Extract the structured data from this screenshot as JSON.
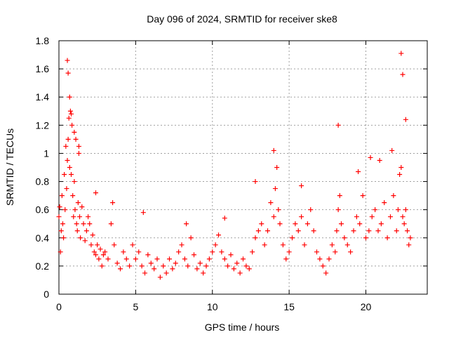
{
  "chart_data": {
    "type": "scatter",
    "title": "Day 096 of 2024, SRMTID for receiver ske8",
    "xlabel": "GPS time / hours",
    "ylabel": "SRMTID / TECUs",
    "xlim": [
      0,
      24
    ],
    "ylim": [
      0,
      1.8
    ],
    "xticks": [
      0,
      5,
      10,
      15,
      20
    ],
    "xtick_labels": [
      "0",
      "5",
      "10",
      "15",
      "20"
    ],
    "yticks": [
      0,
      0.2,
      0.4,
      0.6,
      0.8,
      1,
      1.2,
      1.4,
      1.6,
      1.8
    ],
    "ytick_labels": [
      "0",
      "0.2",
      "0.4",
      "0.6",
      "0.8",
      "1",
      "1.2",
      "1.4",
      "1.6",
      "1.8"
    ],
    "grid": true,
    "marker": "plus",
    "series": [
      {
        "name": "SRMTID",
        "color": "#ff0000",
        "x": [
          0.0,
          0.05,
          0.1,
          0.15,
          0.2,
          0.25,
          0.3,
          0.35,
          0.4,
          0.45,
          0.5,
          0.55,
          0.6,
          0.65,
          0.7,
          0.75,
          0.8,
          0.85,
          0.9,
          0.95,
          1.0,
          1.05,
          1.1,
          1.15,
          1.2,
          1.25,
          1.3,
          1.35,
          1.4,
          1.5,
          1.6,
          1.7,
          1.8,
          1.9,
          2.0,
          2.1,
          2.2,
          2.3,
          2.4,
          2.5,
          2.6,
          2.7,
          2.8,
          2.9,
          3.0,
          3.2,
          3.4,
          3.6,
          3.8,
          4.0,
          4.2,
          4.4,
          4.6,
          4.8,
          5.0,
          5.2,
          5.4,
          5.6,
          5.8,
          6.0,
          6.2,
          6.4,
          6.6,
          6.8,
          7.0,
          7.2,
          7.4,
          7.6,
          7.8,
          8.0,
          8.2,
          8.4,
          8.6,
          8.8,
          9.0,
          9.2,
          9.4,
          9.6,
          9.8,
          10.0,
          10.2,
          10.4,
          10.6,
          10.8,
          11.0,
          11.2,
          11.4,
          11.6,
          11.8,
          12.0,
          12.2,
          12.4,
          12.6,
          12.8,
          13.0,
          13.2,
          13.4,
          13.6,
          13.8,
          14.0,
          14.1,
          14.2,
          14.3,
          14.4,
          14.6,
          14.8,
          15.0,
          15.2,
          15.4,
          15.6,
          15.8,
          16.0,
          16.2,
          16.4,
          16.6,
          16.8,
          17.0,
          17.2,
          17.4,
          17.6,
          17.8,
          18.0,
          18.1,
          18.2,
          18.3,
          18.4,
          18.6,
          18.8,
          19.0,
          19.2,
          19.4,
          19.6,
          19.8,
          20.0,
          20.2,
          20.4,
          20.6,
          20.8,
          21.0,
          21.2,
          21.4,
          21.6,
          21.8,
          22.0,
          22.1,
          22.2,
          22.3,
          22.4,
          22.5,
          22.6,
          22.7,
          22.8,
          22.9,
          0.55,
          0.6,
          0.7,
          0.8,
          1.0,
          1.3,
          2.4,
          3.5,
          5.5,
          8.3,
          10.8,
          12.8,
          14.0,
          15.8,
          18.2,
          19.5,
          20.3,
          20.9,
          21.7,
          22.3,
          22.4,
          22.6
        ],
        "y": [
          0.55,
          0.62,
          0.3,
          0.45,
          0.7,
          0.5,
          0.4,
          0.85,
          0.6,
          1.05,
          0.75,
          0.95,
          1.1,
          1.25,
          0.9,
          1.3,
          0.85,
          1.2,
          0.7,
          0.55,
          0.8,
          0.6,
          1.1,
          0.5,
          0.45,
          0.65,
          1.0,
          0.55,
          0.4,
          0.62,
          0.5,
          0.38,
          0.45,
          0.55,
          0.5,
          0.35,
          0.42,
          0.3,
          0.28,
          0.35,
          0.25,
          0.32,
          0.2,
          0.28,
          0.3,
          0.25,
          0.5,
          0.35,
          0.22,
          0.18,
          0.3,
          0.25,
          0.2,
          0.35,
          0.25,
          0.3,
          0.2,
          0.15,
          0.28,
          0.22,
          0.18,
          0.25,
          0.12,
          0.2,
          0.15,
          0.25,
          0.18,
          0.22,
          0.3,
          0.35,
          0.25,
          0.2,
          0.4,
          0.28,
          0.18,
          0.22,
          0.15,
          0.2,
          0.25,
          0.3,
          0.35,
          0.42,
          0.3,
          0.25,
          0.2,
          0.28,
          0.18,
          0.22,
          0.15,
          0.25,
          0.2,
          0.18,
          0.3,
          0.4,
          0.45,
          0.5,
          0.35,
          0.45,
          0.65,
          0.55,
          0.75,
          0.9,
          0.6,
          0.5,
          0.35,
          0.25,
          0.3,
          0.4,
          0.5,
          0.45,
          0.55,
          0.35,
          0.5,
          0.6,
          0.45,
          0.3,
          0.25,
          0.2,
          0.15,
          0.25,
          0.35,
          0.3,
          0.45,
          0.6,
          0.7,
          0.5,
          0.4,
          0.35,
          0.3,
          0.45,
          0.55,
          0.5,
          0.7,
          0.4,
          0.45,
          0.55,
          0.6,
          0.45,
          0.5,
          0.65,
          0.4,
          0.55,
          0.7,
          0.45,
          0.6,
          0.85,
          0.9,
          0.55,
          0.5,
          0.6,
          0.45,
          0.35,
          0.4,
          1.66,
          1.57,
          1.4,
          1.28,
          1.15,
          1.05,
          0.72,
          0.65,
          0.58,
          0.5,
          0.54,
          0.8,
          1.02,
          0.77,
          1.2,
          0.87,
          0.97,
          0.95,
          1.02,
          1.71,
          1.56,
          1.24
        ]
      }
    ]
  }
}
